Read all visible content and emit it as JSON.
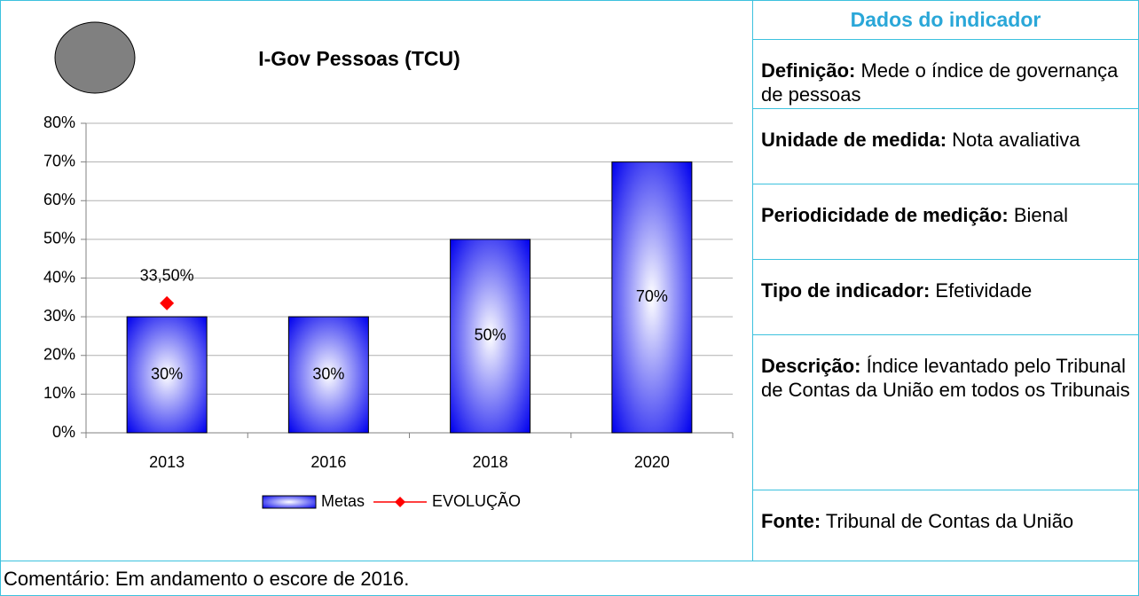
{
  "chart_data": {
    "type": "bar",
    "title": "I-Gov Pessoas (TCU)",
    "categories": [
      "2013",
      "2016",
      "2018",
      "2020"
    ],
    "series": [
      {
        "name": "Metas",
        "type": "bar",
        "color": "#0000ee",
        "values": [
          30,
          30,
          50,
          70
        ],
        "value_labels": [
          "30%",
          "30%",
          "50%",
          "70%"
        ]
      },
      {
        "name": "EVOLUÇÃO",
        "type": "line",
        "color": "#ff0000",
        "values": [
          33.5,
          null,
          null,
          null
        ],
        "value_labels": [
          "33,50%",
          null,
          null,
          null
        ]
      }
    ],
    "ylim": [
      0,
      80
    ],
    "yticks": [
      {
        "value": 0,
        "label": "0%"
      },
      {
        "value": 10,
        "label": "10%"
      },
      {
        "value": 20,
        "label": "20%"
      },
      {
        "value": 30,
        "label": "30%"
      },
      {
        "value": 40,
        "label": "40%"
      },
      {
        "value": 50,
        "label": "50%"
      },
      {
        "value": 60,
        "label": "60%"
      },
      {
        "value": 70,
        "label": "70%"
      },
      {
        "value": 80,
        "label": "80%"
      }
    ],
    "grid": true,
    "legend": "bottom"
  },
  "panel": {
    "title": "Dados do indicador",
    "fields": [
      {
        "label": "Definição:",
        "text": "Mede o índice de governança de pessoas"
      },
      {
        "label": "Unidade de medida:",
        "text": "Nota avaliativa"
      },
      {
        "label": "Periodicidade de medição:",
        "text": "Bienal"
      },
      {
        "label": "Tipo de indicador:",
        "text": "Efetividade"
      },
      {
        "label": "Descrição:",
        "text": "Índice levantado pelo Tribunal de Contas da União em todos os Tribunais"
      },
      {
        "label": "Fonte:",
        "text": "Tribunal de Contas da União"
      }
    ]
  },
  "footer": {
    "comment": "Comentário: Em andamento o escore de 2016."
  }
}
